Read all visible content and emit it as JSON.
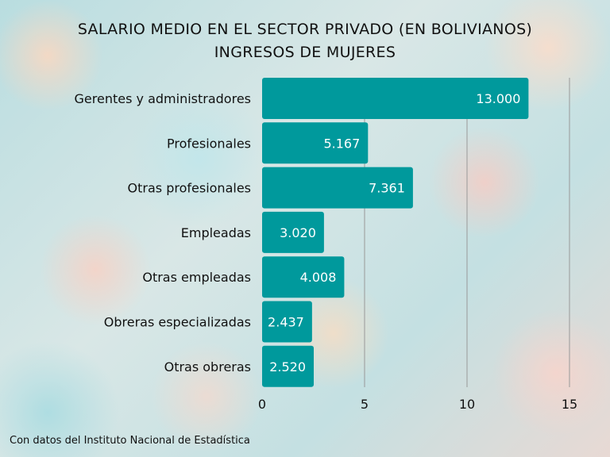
{
  "chart_data": {
    "type": "bar",
    "orientation": "horizontal",
    "title": "SALARIO MEDIO EN EL SECTOR PRIVADO (EN BOLIVIANOS)",
    "subtitle": "INGRESOS DE MUJERES",
    "categories": [
      "Gerentes y administradores",
      "Profesionales",
      "Otras profesionales",
      "Empleadas",
      "Otras empleadas",
      "Obreras especializadas",
      "Otras obreras"
    ],
    "values": [
      13.0,
      5.167,
      7.361,
      3.02,
      4.008,
      2.437,
      2.52
    ],
    "data_labels": [
      "13.000",
      "5.167",
      "7.361",
      "3.020",
      "4.008",
      "2.437",
      "2.520"
    ],
    "xlim": [
      0,
      15
    ],
    "xticks": [
      "0",
      "5",
      "10",
      "15"
    ],
    "grid": "vertical",
    "bar_color": "#00999c",
    "label_color": "#ffffff"
  },
  "footer": "Con datos del Instituto Nacional de Estadística"
}
